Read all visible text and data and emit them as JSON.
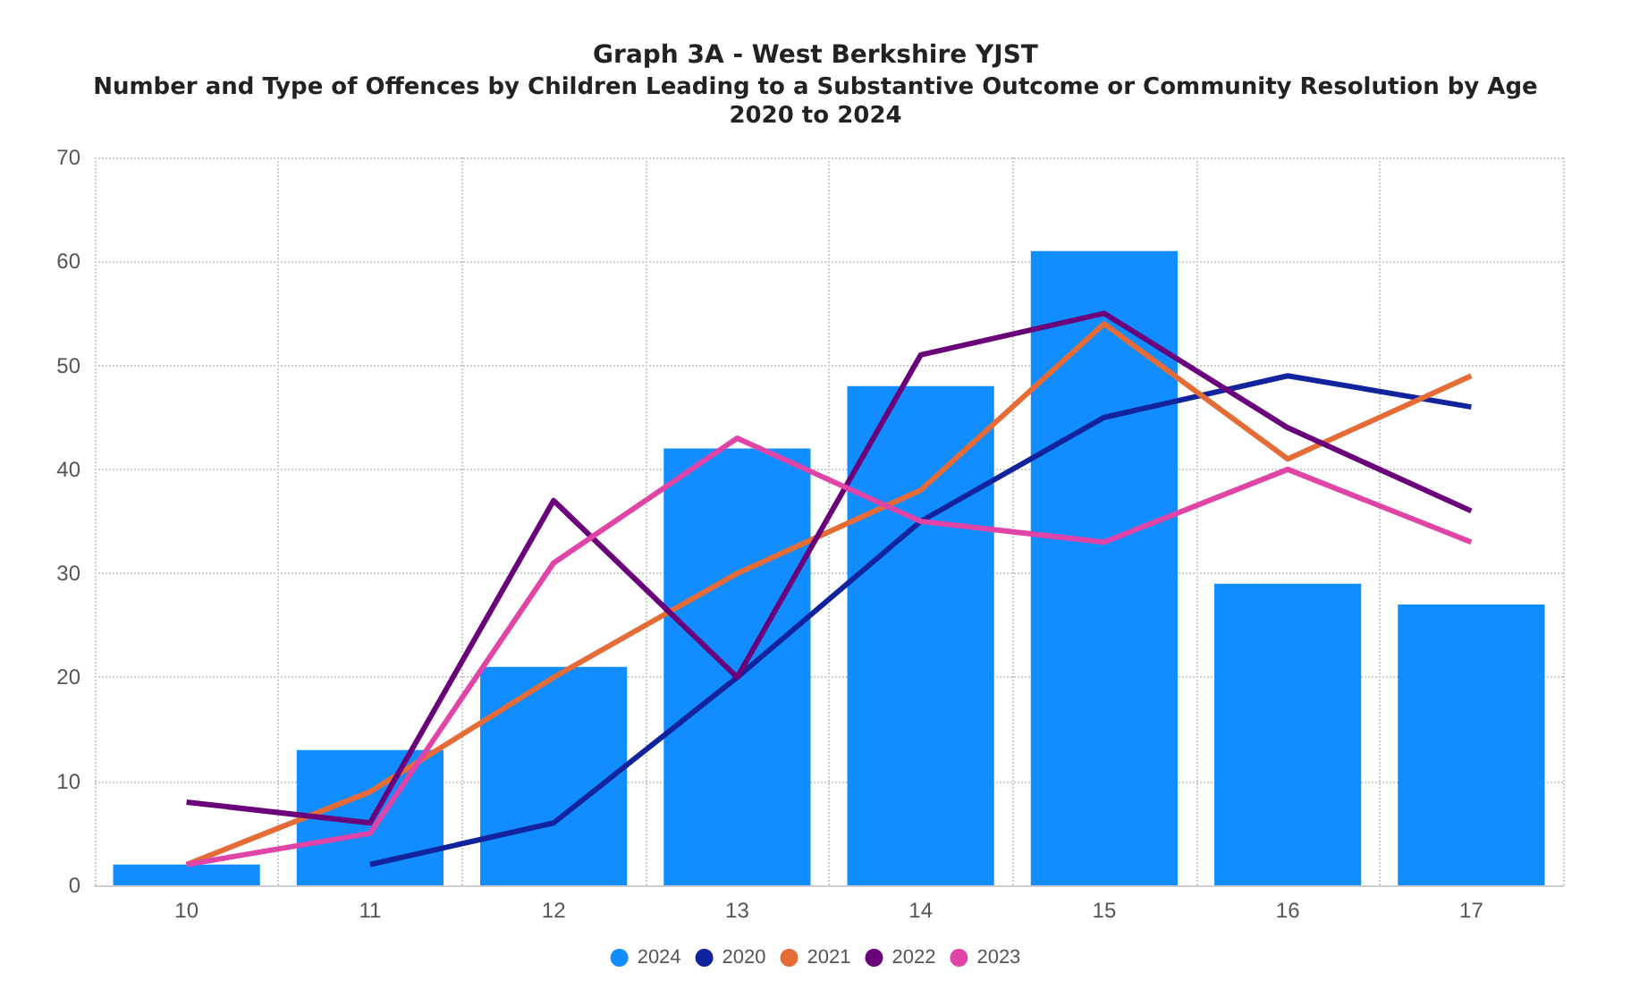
{
  "chart_data": {
    "type": "bar",
    "title": "Graph 3A - West Berkshire YJST",
    "subtitle": "Number and Type of Offences by Children Leading to a Substantive Outcome or Community Resolution by Age\n2020 to 2024",
    "categories": [
      "10",
      "11",
      "12",
      "13",
      "14",
      "15",
      "16",
      "17"
    ],
    "series": [
      {
        "name": "2024",
        "color": "#118dff",
        "values": [
          2,
          13,
          21,
          42,
          48,
          61,
          29,
          27
        ]
      },
      {
        "name": "2020",
        "type": "line",
        "color": "#12239e",
        "values": [
          null,
          2,
          6,
          20,
          35,
          45,
          49,
          46
        ]
      },
      {
        "name": "2021",
        "type": "line",
        "color": "#e66c37",
        "values": [
          2,
          9,
          20,
          30,
          38,
          54,
          41,
          49
        ]
      },
      {
        "name": "2022",
        "type": "line",
        "color": "#6b007b",
        "values": [
          8,
          6,
          37,
          20,
          51,
          55,
          44,
          36
        ]
      },
      {
        "name": "2023",
        "type": "line",
        "color": "#e044a7",
        "values": [
          2,
          5,
          31,
          43,
          35,
          33,
          40,
          33
        ]
      }
    ],
    "ylim": [
      0,
      70
    ],
    "yticks": [
      0,
      10,
      20,
      30,
      40,
      50,
      60,
      70
    ],
    "grid": true,
    "legend": "bottom",
    "marker": "none",
    "line_style": "solid"
  }
}
